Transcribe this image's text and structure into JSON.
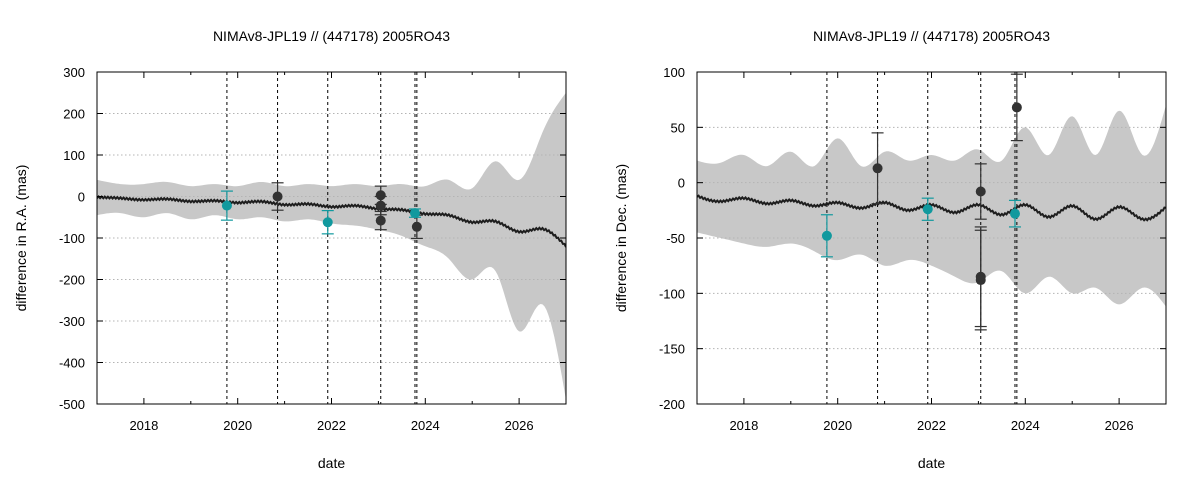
{
  "chart_data": [
    {
      "type": "line",
      "title": "NIMAv8-JPL19 // (447178) 2005RO43",
      "xlabel": "date",
      "ylabel": "difference in R.A. (mas)",
      "xlim": [
        2017,
        2027
      ],
      "ylim": [
        -500,
        300
      ],
      "xticks": [
        2018,
        2020,
        2022,
        2024,
        2026
      ],
      "yticks": [
        300,
        200,
        100,
        0,
        -100,
        -200,
        -300,
        -400,
        -500
      ],
      "grid": true,
      "colors": {
        "band": "#c8c8c8",
        "model": "#1e1e1e",
        "observations": "#333333",
        "highlighted": "#11999e",
        "grid": "#b4b4b4"
      },
      "model_curve": {
        "x": [
          2017.0,
          2017.5,
          2018.0,
          2018.5,
          2019.0,
          2019.5,
          2020.0,
          2020.5,
          2021.0,
          2021.5,
          2022.0,
          2022.5,
          2023.0,
          2023.5,
          2024.0,
          2024.5,
          2025.0,
          2025.5,
          2026.0,
          2026.5,
          2027.0
        ],
        "y": [
          -2,
          -4,
          -8,
          -6,
          -12,
          -10,
          -15,
          -12,
          -20,
          -18,
          -25,
          -22,
          -30,
          -32,
          -42,
          -45,
          -62,
          -60,
          -85,
          -78,
          -120
        ]
      },
      "uncertainty_band": {
        "x": [
          2017.0,
          2017.5,
          2018.0,
          2018.5,
          2019.0,
          2019.5,
          2020.0,
          2020.5,
          2021.0,
          2021.5,
          2022.0,
          2022.5,
          2023.0,
          2023.5,
          2024.0,
          2024.5,
          2025.0,
          2025.5,
          2026.0,
          2026.5,
          2027.0
        ],
        "upper": [
          40,
          30,
          30,
          35,
          25,
          30,
          25,
          35,
          25,
          30,
          25,
          30,
          25,
          30,
          25,
          40,
          20,
          85,
          40,
          155,
          250
        ],
        "lower": [
          -45,
          -40,
          -50,
          -40,
          -55,
          -45,
          -55,
          -50,
          -60,
          -55,
          -65,
          -70,
          -80,
          -95,
          -120,
          -150,
          -200,
          -180,
          -325,
          -260,
          -490
        ]
      },
      "vertical_lines": [
        2019.77,
        2020.85,
        2021.92,
        2023.05,
        2023.78,
        2023.82
      ],
      "observations": [
        {
          "x": 2020.85,
          "y": 0,
          "err": 33
        },
        {
          "x": 2023.05,
          "y": 3,
          "err": 22
        },
        {
          "x": 2023.05,
          "y": -22,
          "err": 22
        },
        {
          "x": 2023.05,
          "y": -58,
          "err": 22
        },
        {
          "x": 2023.82,
          "y": -73,
          "err": 28
        }
      ],
      "highlighted_observations": [
        {
          "x": 2019.77,
          "y": -22,
          "err": 35
        },
        {
          "x": 2021.92,
          "y": -62,
          "err": 28
        },
        {
          "x": 2023.78,
          "y": -40,
          "err": 10
        }
      ]
    },
    {
      "type": "line",
      "title": "NIMAv8-JPL19 // (447178) 2005RO43",
      "xlabel": "date",
      "ylabel": "difference in Dec. (mas)",
      "xlim": [
        2017,
        2027
      ],
      "ylim": [
        -200,
        100
      ],
      "xticks": [
        2018,
        2020,
        2022,
        2024,
        2026
      ],
      "yticks": [
        100,
        50,
        0,
        -50,
        -100,
        -150,
        -200
      ],
      "grid": true,
      "colors": {
        "band": "#c8c8c8",
        "model": "#1e1e1e",
        "observations": "#333333",
        "highlighted": "#11999e",
        "grid": "#b4b4b4"
      },
      "model_curve": {
        "x": [
          2017.0,
          2017.5,
          2018.0,
          2018.5,
          2019.0,
          2019.5,
          2020.0,
          2020.5,
          2021.0,
          2021.5,
          2022.0,
          2022.5,
          2023.0,
          2023.5,
          2024.0,
          2024.5,
          2025.0,
          2025.5,
          2026.0,
          2026.5,
          2027.0
        ],
        "y": [
          -12,
          -17,
          -14,
          -19,
          -16,
          -21,
          -18,
          -23,
          -18,
          -25,
          -20,
          -27,
          -20,
          -29,
          -20,
          -31,
          -21,
          -33,
          -22,
          -33,
          -22
        ]
      },
      "uncertainty_band": {
        "x": [
          2017.0,
          2017.5,
          2018.0,
          2018.5,
          2019.0,
          2019.5,
          2020.0,
          2020.5,
          2021.0,
          2021.5,
          2022.0,
          2022.5,
          2023.0,
          2023.5,
          2024.0,
          2024.5,
          2025.0,
          2025.5,
          2026.0,
          2026.5,
          2027.0
        ],
        "upper": [
          20,
          18,
          25,
          15,
          28,
          15,
          40,
          15,
          28,
          20,
          25,
          20,
          30,
          20,
          50,
          25,
          60,
          25,
          65,
          25,
          70
        ],
        "lower": [
          -45,
          -50,
          -55,
          -58,
          -55,
          -62,
          -70,
          -65,
          -75,
          -70,
          -75,
          -85,
          -90,
          -80,
          -100,
          -85,
          -100,
          -95,
          -110,
          -95,
          -112
        ]
      },
      "vertical_lines": [
        2019.77,
        2020.85,
        2021.92,
        2023.05,
        2023.78,
        2023.82
      ],
      "observations": [
        {
          "x": 2020.85,
          "y": 13,
          "err": 32
        },
        {
          "x": 2023.05,
          "y": -8,
          "err": 25
        },
        {
          "x": 2023.05,
          "y": -85,
          "err": 45
        },
        {
          "x": 2023.05,
          "y": -88,
          "err": 45
        },
        {
          "x": 2023.82,
          "y": 68,
          "err": 30
        }
      ],
      "highlighted_observations": [
        {
          "x": 2019.77,
          "y": -48,
          "err": 19
        },
        {
          "x": 2021.92,
          "y": -24,
          "err": 10
        },
        {
          "x": 2023.78,
          "y": -28,
          "err": 12
        }
      ]
    }
  ]
}
